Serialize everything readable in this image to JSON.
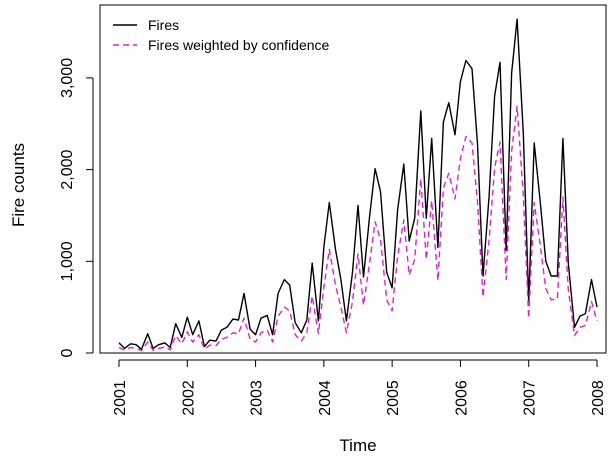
{
  "chart_data": {
    "type": "line",
    "xlabel": "Time",
    "ylabel": "Fire counts",
    "xlim": [
      2001,
      2008
    ],
    "ylim": [
      0,
      3700
    ],
    "x_ticks": [
      2001,
      2002,
      2003,
      2004,
      2005,
      2006,
      2007,
      2008
    ],
    "x_tick_labels": [
      "2001",
      "2002",
      "2003",
      "2004",
      "2005",
      "2006",
      "2007",
      "2008"
    ],
    "y_ticks": [
      0,
      1000,
      2000,
      3000
    ],
    "y_tick_labels": [
      "0",
      "1,000",
      "2,000",
      "3,000"
    ],
    "grid": false,
    "legend_position": "top-left",
    "series": [
      {
        "name": "Fires",
        "color": "#000000",
        "dash": "solid",
        "points": [
          [
            2001.0,
            110
          ],
          [
            2001.08,
            50
          ],
          [
            2001.17,
            100
          ],
          [
            2001.25,
            90
          ],
          [
            2001.33,
            40
          ],
          [
            2001.42,
            210
          ],
          [
            2001.5,
            50
          ],
          [
            2001.58,
            90
          ],
          [
            2001.67,
            110
          ],
          [
            2001.75,
            60
          ],
          [
            2001.83,
            320
          ],
          [
            2001.92,
            170
          ],
          [
            2002.0,
            390
          ],
          [
            2002.08,
            200
          ],
          [
            2002.17,
            350
          ],
          [
            2002.25,
            70
          ],
          [
            2002.33,
            140
          ],
          [
            2002.42,
            130
          ],
          [
            2002.5,
            250
          ],
          [
            2002.58,
            280
          ],
          [
            2002.67,
            370
          ],
          [
            2002.75,
            360
          ],
          [
            2002.83,
            650
          ],
          [
            2002.92,
            260
          ],
          [
            2003.0,
            200
          ],
          [
            2003.08,
            380
          ],
          [
            2003.17,
            410
          ],
          [
            2003.25,
            200
          ],
          [
            2003.33,
            650
          ],
          [
            2003.42,
            800
          ],
          [
            2003.5,
            740
          ],
          [
            2003.58,
            330
          ],
          [
            2003.67,
            220
          ],
          [
            2003.75,
            360
          ],
          [
            2003.83,
            980
          ],
          [
            2003.92,
            350
          ],
          [
            2004.0,
            1160
          ],
          [
            2004.08,
            1640
          ],
          [
            2004.17,
            1130
          ],
          [
            2004.25,
            800
          ],
          [
            2004.33,
            350
          ],
          [
            2004.42,
            880
          ],
          [
            2004.5,
            1610
          ],
          [
            2004.58,
            830
          ],
          [
            2004.67,
            1490
          ],
          [
            2004.75,
            2010
          ],
          [
            2004.83,
            1760
          ],
          [
            2004.92,
            880
          ],
          [
            2005.0,
            710
          ],
          [
            2005.08,
            1560
          ],
          [
            2005.17,
            2060
          ],
          [
            2005.25,
            1220
          ],
          [
            2005.33,
            1470
          ],
          [
            2005.42,
            2640
          ],
          [
            2005.5,
            1470
          ],
          [
            2005.58,
            2340
          ],
          [
            2005.67,
            1150
          ],
          [
            2005.75,
            2520
          ],
          [
            2005.83,
            2730
          ],
          [
            2005.92,
            2380
          ],
          [
            2006.0,
            2960
          ],
          [
            2006.08,
            3190
          ],
          [
            2006.17,
            3100
          ],
          [
            2006.25,
            2280
          ],
          [
            2006.33,
            840
          ],
          [
            2006.42,
            1710
          ],
          [
            2006.5,
            2800
          ],
          [
            2006.58,
            3170
          ],
          [
            2006.67,
            1120
          ],
          [
            2006.75,
            3050
          ],
          [
            2006.83,
            3640
          ],
          [
            2006.92,
            2400
          ],
          [
            2007.0,
            560
          ],
          [
            2007.08,
            2290
          ],
          [
            2007.17,
            1640
          ],
          [
            2007.25,
            1000
          ],
          [
            2007.33,
            840
          ],
          [
            2007.42,
            840
          ],
          [
            2007.5,
            2340
          ],
          [
            2007.58,
            980
          ],
          [
            2007.67,
            280
          ],
          [
            2007.75,
            400
          ],
          [
            2007.83,
            430
          ],
          [
            2007.92,
            800
          ],
          [
            2008.0,
            500
          ]
        ]
      },
      {
        "name": "Fires weighted by confidence",
        "color": "#e020d0",
        "dash": "dashed",
        "points": [
          [
            2001.0,
            60
          ],
          [
            2001.08,
            30
          ],
          [
            2001.17,
            60
          ],
          [
            2001.25,
            50
          ],
          [
            2001.33,
            25
          ],
          [
            2001.42,
            120
          ],
          [
            2001.5,
            30
          ],
          [
            2001.58,
            50
          ],
          [
            2001.67,
            65
          ],
          [
            2001.75,
            35
          ],
          [
            2001.83,
            190
          ],
          [
            2001.92,
            100
          ],
          [
            2002.0,
            230
          ],
          [
            2002.08,
            120
          ],
          [
            2002.17,
            200
          ],
          [
            2002.25,
            45
          ],
          [
            2002.33,
            85
          ],
          [
            2002.42,
            80
          ],
          [
            2002.5,
            150
          ],
          [
            2002.58,
            170
          ],
          [
            2002.67,
            220
          ],
          [
            2002.75,
            210
          ],
          [
            2002.83,
            380
          ],
          [
            2002.92,
            150
          ],
          [
            2003.0,
            120
          ],
          [
            2003.08,
            220
          ],
          [
            2003.17,
            250
          ],
          [
            2003.25,
            120
          ],
          [
            2003.33,
            400
          ],
          [
            2003.42,
            500
          ],
          [
            2003.5,
            460
          ],
          [
            2003.58,
            200
          ],
          [
            2003.67,
            130
          ],
          [
            2003.75,
            220
          ],
          [
            2003.83,
            620
          ],
          [
            2003.92,
            210
          ],
          [
            2004.0,
            720
          ],
          [
            2004.08,
            1130
          ],
          [
            2004.17,
            740
          ],
          [
            2004.25,
            500
          ],
          [
            2004.33,
            220
          ],
          [
            2004.42,
            560
          ],
          [
            2004.5,
            1080
          ],
          [
            2004.58,
            520
          ],
          [
            2004.67,
            980
          ],
          [
            2004.75,
            1430
          ],
          [
            2004.83,
            1240
          ],
          [
            2004.92,
            580
          ],
          [
            2005.0,
            460
          ],
          [
            2005.08,
            1050
          ],
          [
            2005.17,
            1450
          ],
          [
            2005.25,
            850
          ],
          [
            2005.33,
            1020
          ],
          [
            2005.42,
            1900
          ],
          [
            2005.5,
            1020
          ],
          [
            2005.58,
            1660
          ],
          [
            2005.67,
            790
          ],
          [
            2005.75,
            1800
          ],
          [
            2005.83,
            1960
          ],
          [
            2005.92,
            1680
          ],
          [
            2006.0,
            2120
          ],
          [
            2006.08,
            2360
          ],
          [
            2006.17,
            2290
          ],
          [
            2006.25,
            1650
          ],
          [
            2006.33,
            610
          ],
          [
            2006.42,
            1230
          ],
          [
            2006.5,
            2020
          ],
          [
            2006.58,
            2300
          ],
          [
            2006.67,
            800
          ],
          [
            2006.75,
            2200
          ],
          [
            2006.83,
            2690
          ],
          [
            2006.92,
            1720
          ],
          [
            2007.0,
            380
          ],
          [
            2007.08,
            1640
          ],
          [
            2007.17,
            1170
          ],
          [
            2007.25,
            700
          ],
          [
            2007.33,
            580
          ],
          [
            2007.42,
            590
          ],
          [
            2007.5,
            1700
          ],
          [
            2007.58,
            690
          ],
          [
            2007.67,
            190
          ],
          [
            2007.75,
            280
          ],
          [
            2007.83,
            300
          ],
          [
            2007.92,
            560
          ],
          [
            2008.0,
            350
          ]
        ]
      }
    ]
  }
}
